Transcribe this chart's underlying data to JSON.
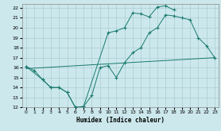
{
  "xlabel": "Humidex (Indice chaleur)",
  "bg_color": "#cce8ec",
  "line_color": "#1a7a6e",
  "grid_color": "#aacdd4",
  "xlim": [
    -0.5,
    23.5
  ],
  "ylim": [
    12,
    22.4
  ],
  "xticks": [
    0,
    1,
    2,
    3,
    4,
    5,
    6,
    7,
    8,
    9,
    10,
    11,
    12,
    13,
    14,
    15,
    16,
    17,
    18,
    19,
    20,
    21,
    22,
    23
  ],
  "yticks": [
    12,
    13,
    14,
    15,
    16,
    17,
    18,
    19,
    20,
    21,
    22
  ],
  "line1_x": [
    0,
    1,
    2,
    3,
    4,
    5,
    6,
    7,
    8,
    9,
    10,
    11,
    12,
    13,
    14,
    15,
    16,
    17,
    18,
    19,
    20,
    21,
    22,
    23
  ],
  "line1_y": [
    16.1,
    15.7,
    14.8,
    14.0,
    14.0,
    13.5,
    12.0,
    12.1,
    13.2,
    16.0,
    16.2,
    15.0,
    16.5,
    17.5,
    18.0,
    19.5,
    20.0,
    21.3,
    21.2,
    21.0,
    20.8,
    19.0,
    18.2,
    17.0
  ],
  "line2_x": [
    0,
    2,
    3,
    4,
    5,
    6,
    7,
    10,
    11,
    12,
    13,
    14,
    15,
    16,
    17,
    18
  ],
  "line2_y": [
    16.1,
    14.8,
    14.0,
    14.0,
    13.5,
    12.0,
    12.1,
    19.5,
    19.7,
    20.0,
    21.5,
    21.4,
    21.1,
    22.1,
    22.2,
    21.8
  ],
  "line3_x": [
    0,
    23
  ],
  "line3_y": [
    15.9,
    17.0
  ]
}
